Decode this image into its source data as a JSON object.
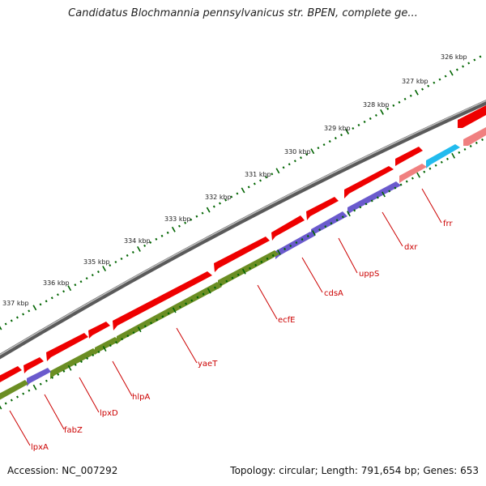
{
  "title": "Candidatus Blochmannia pennsylvanicus str. BPEN, complete ge...",
  "footer": {
    "accession": "Accession: NC_007292",
    "stats": "Topology: circular; Length: 791,654 bp; Genes: 653"
  },
  "colors": {
    "backbone": "#7a7a7a",
    "forward_cds": "#ee0000",
    "reverse_cds_olive": "#6b8e23",
    "reverse_cds_slate": "#6a5acd",
    "rna_cyan": "#22bbee",
    "pink": "#f08080",
    "tick": "#006400",
    "label": "#cc0000"
  },
  "map": {
    "scale_labels": [
      "326 kbp",
      "327 kbp",
      "328 kbp",
      "329 kbp",
      "330 kbp",
      "331 kbp",
      "332 kbp",
      "333 kbp",
      "334 kbp",
      "335 kbp",
      "336 kbp",
      "337 kbp"
    ],
    "genes": [
      {
        "name": "frr",
        "kind": "pink"
      },
      {
        "name": "dxr",
        "kind": "reverse_cds_slate"
      },
      {
        "name": "uppS",
        "kind": "reverse_cds_slate"
      },
      {
        "name": "cdsA",
        "kind": "reverse_cds_slate"
      },
      {
        "name": "ecfE",
        "kind": "reverse_cds_olive"
      },
      {
        "name": "yaeT",
        "kind": "reverse_cds_olive"
      },
      {
        "name": "hlpA",
        "kind": "reverse_cds_olive"
      },
      {
        "name": "lpxD",
        "kind": "reverse_cds_olive"
      },
      {
        "name": "fabZ",
        "kind": "reverse_cds_slate"
      },
      {
        "name": "lpxA",
        "kind": "reverse_cds_olive"
      }
    ]
  }
}
